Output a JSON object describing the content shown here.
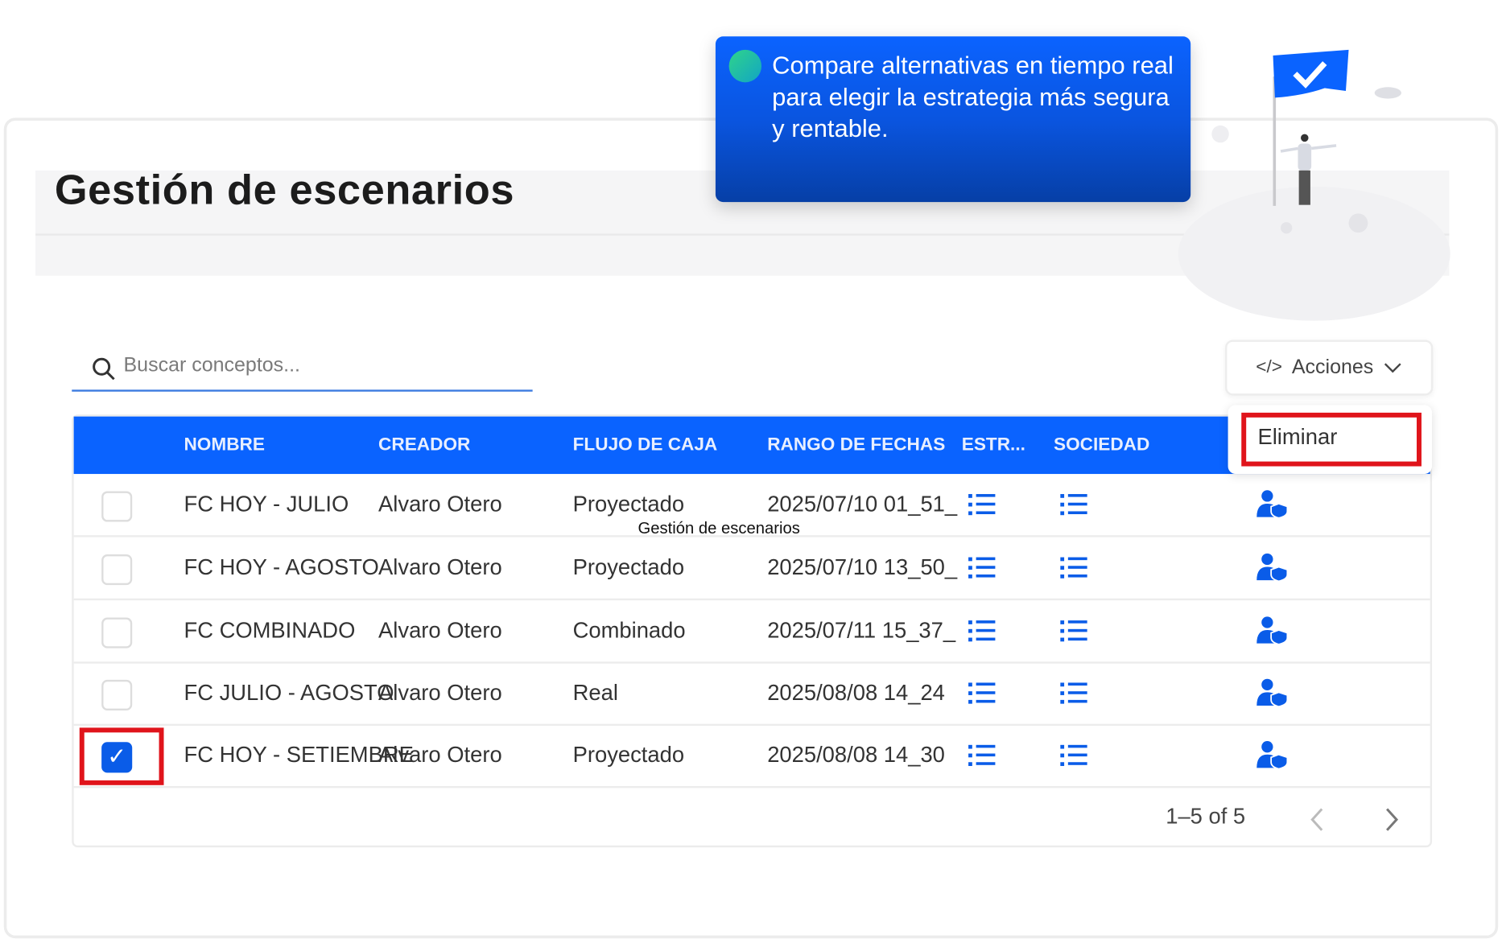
{
  "tooltip": {
    "text": "Compare alternativas en tiempo real para elegir la estrategia más segura y rentable."
  },
  "page": {
    "title": "Gestión de escenarios",
    "overlay_label": "Gestión de escenarios"
  },
  "search": {
    "placeholder": "Buscar conceptos..."
  },
  "actions": {
    "label": "Acciones",
    "menu": [
      "Eliminar"
    ]
  },
  "table": {
    "columns": [
      "NOMBRE",
      "CREADOR",
      "FLUJO DE CAJA",
      "RANGO DE FECHAS",
      "ESTR...",
      "SOCIEDAD"
    ],
    "rows": [
      {
        "checked": false,
        "nombre": "FC HOY - JULIO",
        "creador": "Alvaro Otero",
        "flujo": "Proyectado",
        "rango": "2025/07/10 01_51_"
      },
      {
        "checked": false,
        "nombre": "FC HOY - AGOSTO",
        "creador": "Alvaro Otero",
        "flujo": "Proyectado",
        "rango": "2025/07/10 13_50_"
      },
      {
        "checked": false,
        "nombre": "FC COMBINADO",
        "creador": "Alvaro Otero",
        "flujo": "Combinado",
        "rango": "2025/07/11 15_37_"
      },
      {
        "checked": false,
        "nombre": "FC JULIO - AGOSTO",
        "creador": "Alvaro Otero",
        "flujo": "Real",
        "rango": "2025/08/08 14_24"
      },
      {
        "checked": true,
        "nombre": "FC HOY - SETIEMBRE",
        "creador": "Alvaro Otero",
        "flujo": "Proyectado",
        "rango": "2025/08/08 14_30"
      }
    ],
    "pagination": "1–5 of 5"
  },
  "colors": {
    "primary": "#0a63ff",
    "highlight": "#e0141b"
  }
}
